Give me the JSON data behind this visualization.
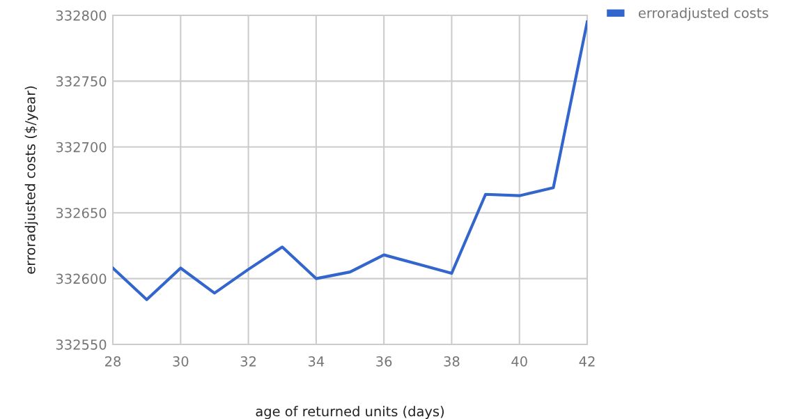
{
  "chart_data": {
    "type": "line",
    "xlabel": "age of returned units (days)",
    "ylabel": "erroradjusted costs ($/year)",
    "x": [
      28,
      29,
      30,
      31,
      32,
      33,
      34,
      35,
      36,
      37,
      38,
      39,
      40,
      41,
      42
    ],
    "series": [
      {
        "name": "erroradjusted costs",
        "color": "#3366cc",
        "values": [
          332608,
          332584,
          332608,
          332589,
          332607,
          332624,
          332600,
          332605,
          332618,
          332611,
          332604,
          332664,
          332663,
          332669,
          332795
        ]
      }
    ],
    "xlim": [
      28,
      42
    ],
    "ylim": [
      332550,
      332800
    ],
    "xticks": [
      28,
      30,
      32,
      34,
      36,
      38,
      40,
      42
    ],
    "yticks": [
      332550,
      332600,
      332650,
      332700,
      332750,
      332800
    ],
    "grid": true,
    "legend": "right"
  }
}
